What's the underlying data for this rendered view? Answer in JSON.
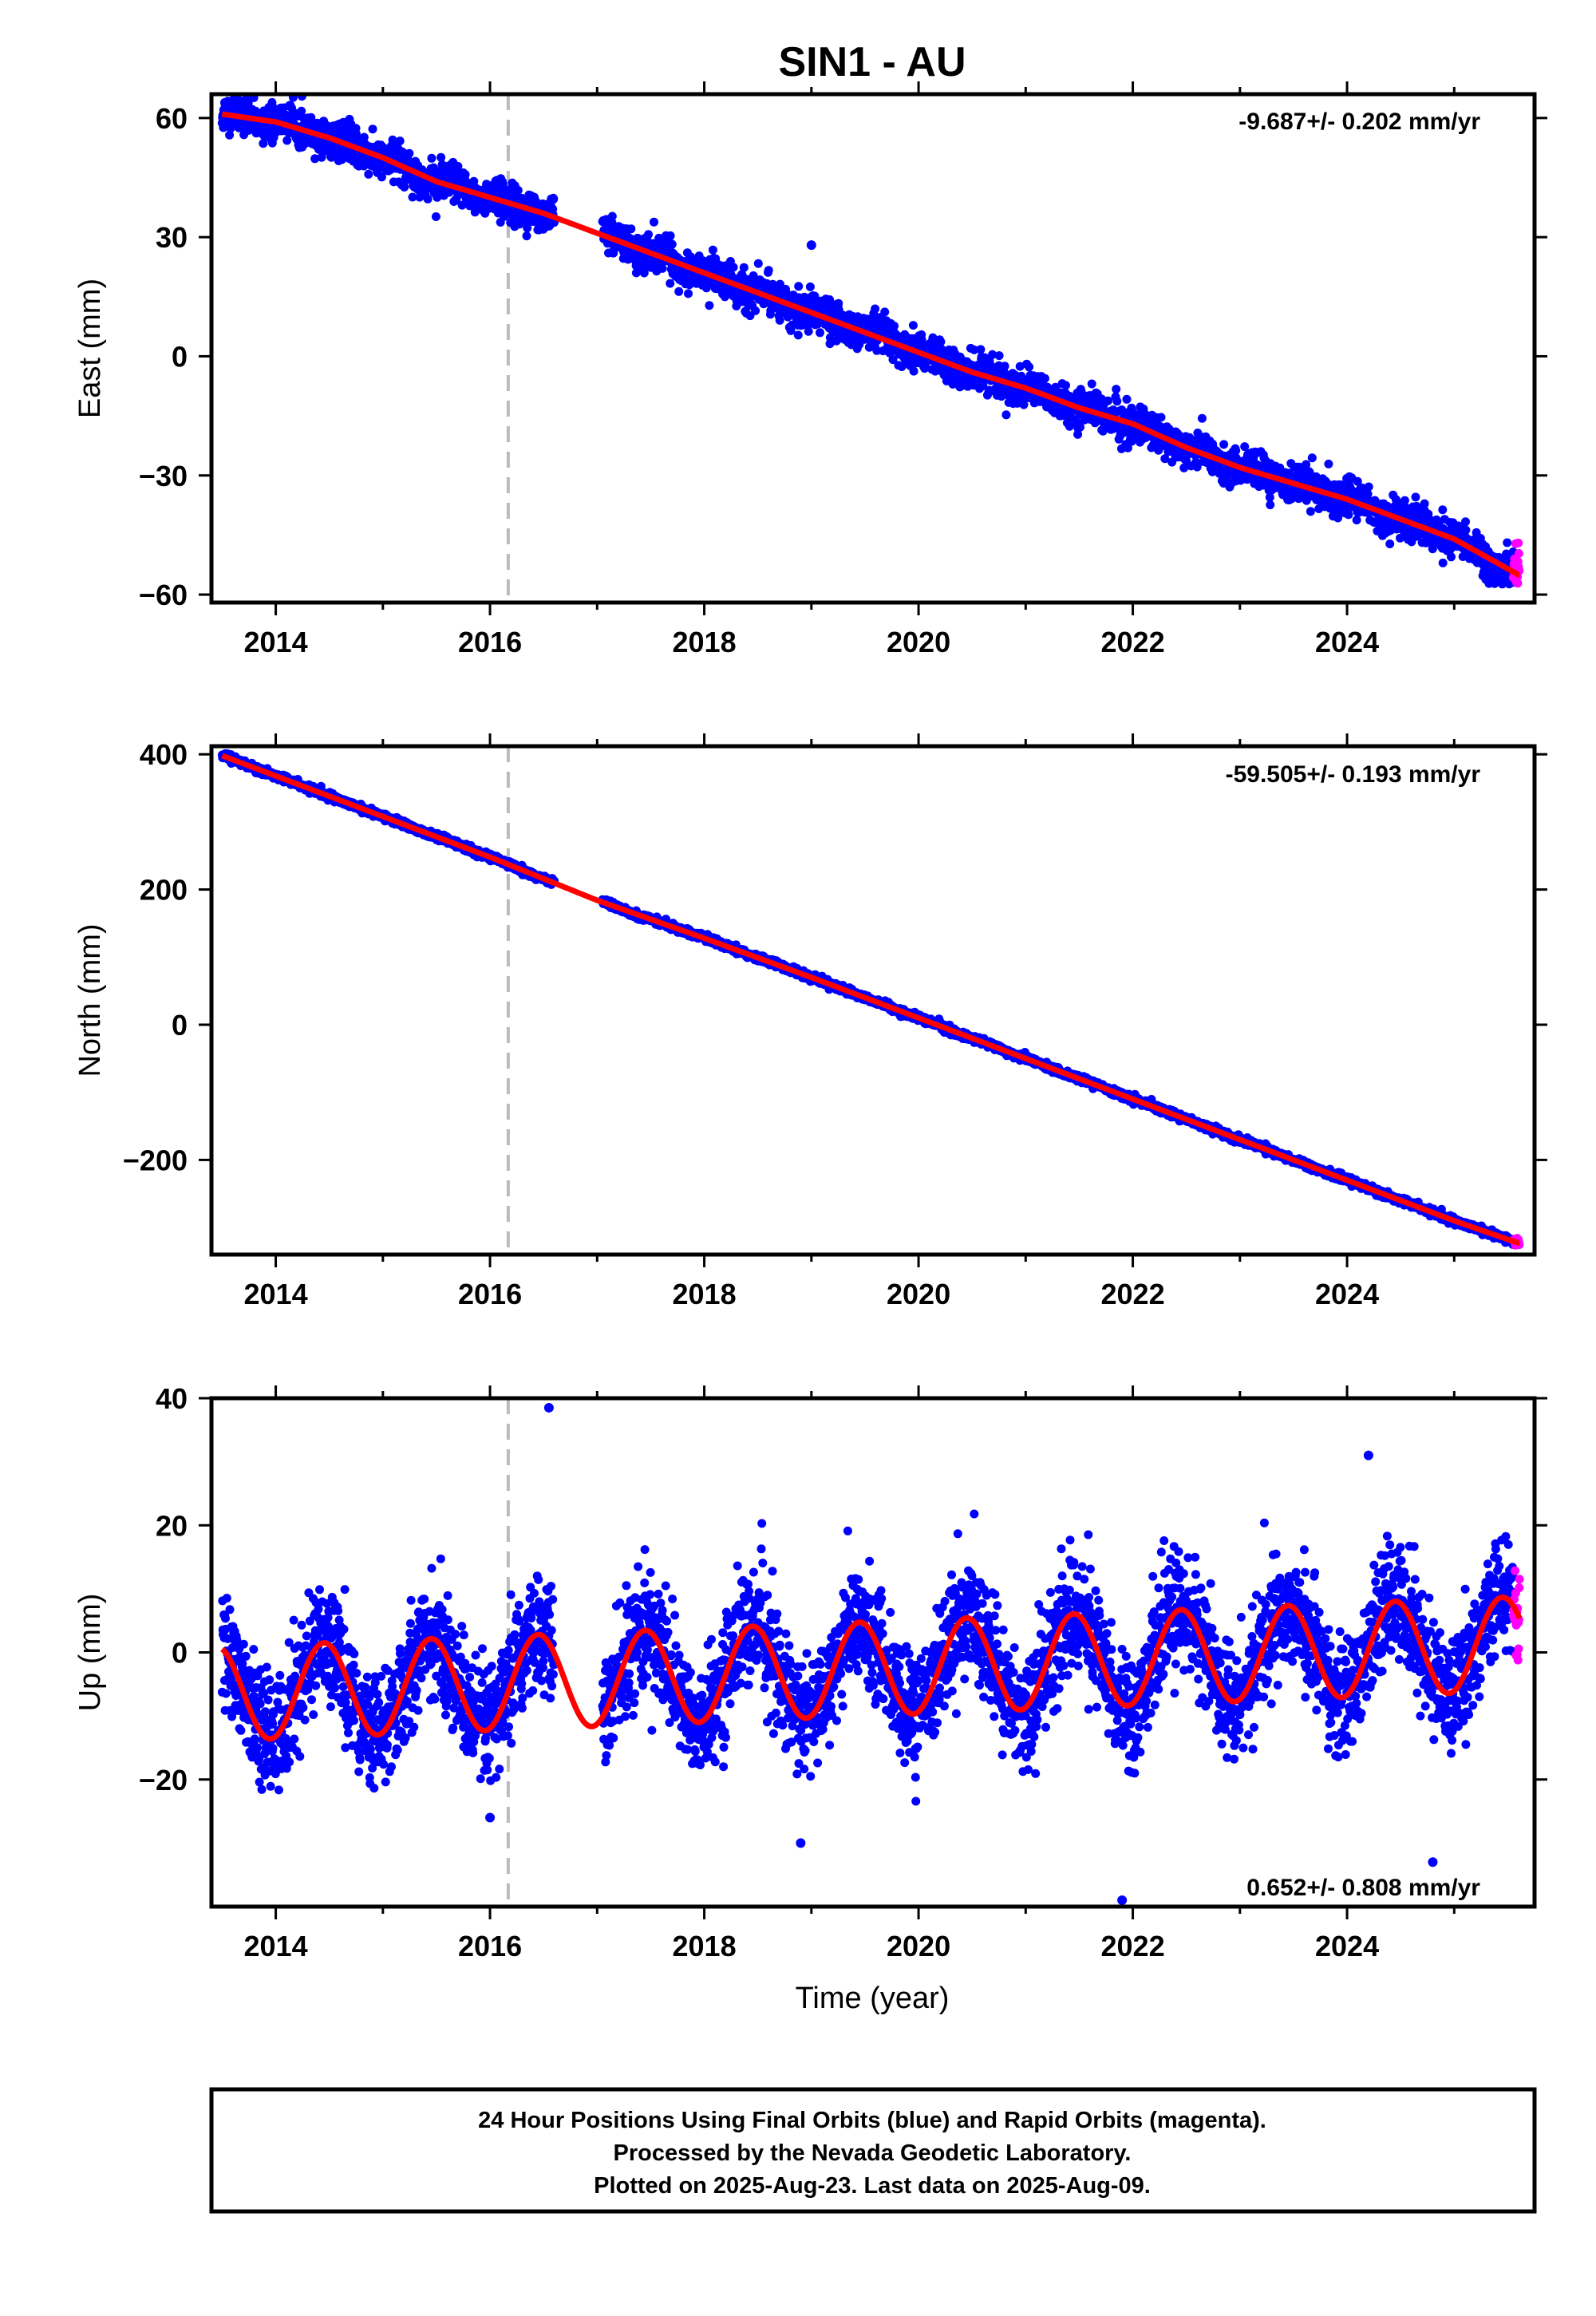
{
  "title": "SIN1 - AU",
  "colors": {
    "final": "#0000ff",
    "rapid": "#ff00ff",
    "fit": "#ff0000",
    "marker": "#bbbbbb",
    "frame": "#000000"
  },
  "xlabel": "Time (year)",
  "note": {
    "line1": "24 Hour Positions Using Final Orbits (blue) and Rapid Orbits (magenta).",
    "line2": "Processed by the Nevada Geodetic Laboratory.",
    "line3": "Plotted on 2025-Aug-23. Last data on 2025-Aug-09."
  },
  "chart_data": [
    {
      "type": "scatter",
      "component": "East",
      "ylabel": "East (mm)",
      "rate_text": "-9.687+/- 0.202 mm/yr",
      "xlim": [
        2013.4,
        2025.75
      ],
      "ylim": [
        -62,
        66
      ],
      "xticks": [
        2014,
        2016,
        2018,
        2020,
        2022,
        2024
      ],
      "yticks": [
        -60,
        -30,
        0,
        30,
        60
      ],
      "ytick_labels": [
        "−60",
        "−30",
        "0",
        "30",
        "60"
      ],
      "equipment_change": 2016.17,
      "data_start": 2013.5,
      "data_end": 2025.61,
      "gap": [
        2016.6,
        2017.05
      ],
      "rapid_start": 2025.55,
      "fit_line": {
        "x": [
          2013.5,
          2014.0,
          2014.5,
          2015.0,
          2015.5,
          2016.0,
          2016.5,
          2017.0,
          2017.5,
          2018.0,
          2018.5,
          2019.0,
          2019.5,
          2020.0,
          2020.5,
          2021.0,
          2021.5,
          2022.0,
          2022.5,
          2023.0,
          2023.5,
          2024.0,
          2024.5,
          2025.0,
          2025.6
        ],
        "y": [
          61,
          59,
          55,
          50,
          44,
          40,
          36,
          31,
          26,
          21,
          16,
          11,
          6,
          1,
          -4,
          -8,
          -13,
          -17,
          -23,
          -28,
          -32,
          -36,
          -41,
          -46,
          -55
        ]
      },
      "scatter_sigma": 2.2,
      "seasonal_amp": 2.0,
      "outliers": [
        {
          "x": 2019.0,
          "y": 28
        }
      ]
    },
    {
      "type": "scatter",
      "component": "North",
      "ylabel": "North (mm)",
      "rate_text": "-59.505+/- 0.193 mm/yr",
      "xlim": [
        2013.4,
        2025.75
      ],
      "ylim": [
        -340,
        412
      ],
      "xticks": [
        2014,
        2016,
        2018,
        2020,
        2022,
        2024
      ],
      "yticks": [
        -200,
        0,
        200,
        400
      ],
      "ytick_labels": [
        "−200",
        "0",
        "200",
        "400"
      ],
      "equipment_change": 2016.17,
      "data_start": 2013.5,
      "data_end": 2025.61,
      "gap": [
        2016.6,
        2017.05
      ],
      "rapid_start": 2025.55,
      "fit_line": {
        "x": [
          2013.5,
          2014.0,
          2015.0,
          2016.0,
          2016.5,
          2017.0,
          2018.0,
          2019.0,
          2020.0,
          2021.0,
          2022.0,
          2023.0,
          2024.0,
          2025.0,
          2025.6
        ],
        "y": [
          398,
          368,
          308,
          248,
          216,
          184,
          128,
          70,
          10,
          -50,
          -110,
          -170,
          -230,
          -290,
          -323
        ]
      },
      "scatter_sigma": 2.5,
      "seasonal_amp": 1.5,
      "outliers": []
    },
    {
      "type": "scatter",
      "component": "Up",
      "ylabel": "Up (mm)",
      "rate_text": "0.652+/- 0.808 mm/yr",
      "xlim": [
        2013.4,
        2025.75
      ],
      "ylim": [
        -40,
        40
      ],
      "xticks": [
        2014,
        2016,
        2018,
        2020,
        2022,
        2024
      ],
      "yticks": [
        -20,
        0,
        20,
        40
      ],
      "ytick_labels": [
        "−20",
        "0",
        "20",
        "40"
      ],
      "equipment_change": 2016.17,
      "data_start": 2013.5,
      "data_end": 2025.61,
      "gap": [
        2016.6,
        2017.05
      ],
      "rapid_start": 2025.55,
      "fit_seasonal": {
        "offset": -2.6,
        "trend": 0.652,
        "ref_year": 2019.5,
        "amplitude": 7.4,
        "peak_phase": 0.45
      },
      "scatter_sigma": 4.5,
      "outliers": [
        {
          "x": 2016.55,
          "y": 38.5
        },
        {
          "x": 2018.9,
          "y": -30
        },
        {
          "x": 2021.9,
          "y": -39
        },
        {
          "x": 2024.8,
          "y": -33
        },
        {
          "x": 2024.2,
          "y": 31
        },
        {
          "x": 2016.0,
          "y": -26
        }
      ]
    }
  ]
}
